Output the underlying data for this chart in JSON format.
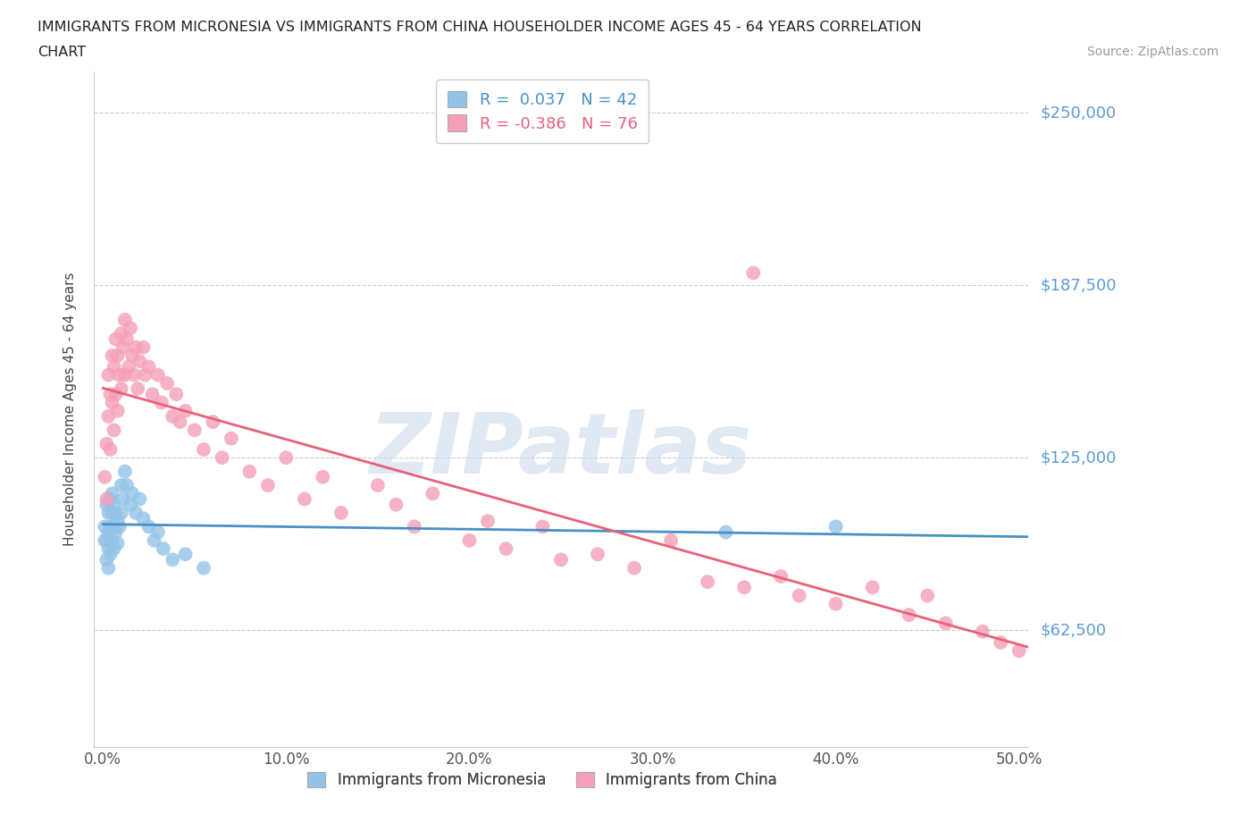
{
  "title_line1": "IMMIGRANTS FROM MICRONESIA VS IMMIGRANTS FROM CHINA HOUSEHOLDER INCOME AGES 45 - 64 YEARS CORRELATION",
  "title_line2": "CHART",
  "source_text": "Source: ZipAtlas.com",
  "ylabel": "Householder Income Ages 45 - 64 years",
  "xlim": [
    -0.005,
    0.505
  ],
  "ylim": [
    20000,
    265000
  ],
  "yticks": [
    62500,
    125000,
    187500,
    250000
  ],
  "ytick_labels": [
    "$62,500",
    "$125,000",
    "$187,500",
    "$250,000"
  ],
  "xticks": [
    0.0,
    0.1,
    0.2,
    0.3,
    0.4,
    0.5
  ],
  "xtick_labels": [
    "0.0%",
    "10.0%",
    "20.0%",
    "30.0%",
    "40.0%",
    "50.0%"
  ],
  "micronesia_color": "#93c4e8",
  "china_color": "#f4a0b8",
  "micronesia_trend_color": "#4a90c4",
  "china_trend_color": "#e8607a",
  "micronesia_R": 0.037,
  "micronesia_N": 42,
  "china_R": -0.386,
  "china_N": 76,
  "watermark": "ZIPatlas",
  "micronesia_x": [
    0.001,
    0.001,
    0.002,
    0.002,
    0.002,
    0.003,
    0.003,
    0.003,
    0.003,
    0.004,
    0.004,
    0.004,
    0.005,
    0.005,
    0.005,
    0.006,
    0.006,
    0.006,
    0.007,
    0.007,
    0.008,
    0.008,
    0.009,
    0.01,
    0.01,
    0.011,
    0.012,
    0.013,
    0.015,
    0.016,
    0.018,
    0.02,
    0.022,
    0.025,
    0.028,
    0.03,
    0.033,
    0.038,
    0.045,
    0.055,
    0.34,
    0.4
  ],
  "micronesia_y": [
    100000,
    95000,
    108000,
    95000,
    88000,
    105000,
    98000,
    92000,
    85000,
    110000,
    100000,
    90000,
    112000,
    105000,
    95000,
    108000,
    100000,
    92000,
    105000,
    98000,
    102000,
    94000,
    100000,
    115000,
    105000,
    110000,
    120000,
    115000,
    108000,
    112000,
    105000,
    110000,
    103000,
    100000,
    95000,
    98000,
    92000,
    88000,
    90000,
    85000,
    98000,
    100000
  ],
  "china_x": [
    0.001,
    0.002,
    0.002,
    0.003,
    0.003,
    0.004,
    0.004,
    0.005,
    0.005,
    0.006,
    0.006,
    0.007,
    0.007,
    0.008,
    0.008,
    0.009,
    0.01,
    0.01,
    0.011,
    0.012,
    0.012,
    0.013,
    0.014,
    0.015,
    0.016,
    0.017,
    0.018,
    0.019,
    0.02,
    0.022,
    0.023,
    0.025,
    0.027,
    0.03,
    0.032,
    0.035,
    0.038,
    0.04,
    0.042,
    0.045,
    0.05,
    0.055,
    0.06,
    0.065,
    0.07,
    0.08,
    0.09,
    0.1,
    0.11,
    0.12,
    0.13,
    0.15,
    0.16,
    0.17,
    0.18,
    0.2,
    0.21,
    0.22,
    0.24,
    0.25,
    0.27,
    0.29,
    0.31,
    0.33,
    0.35,
    0.355,
    0.37,
    0.38,
    0.4,
    0.42,
    0.44,
    0.45,
    0.46,
    0.48,
    0.49,
    0.5
  ],
  "china_y": [
    118000,
    130000,
    110000,
    155000,
    140000,
    148000,
    128000,
    162000,
    145000,
    158000,
    135000,
    168000,
    148000,
    162000,
    142000,
    155000,
    170000,
    150000,
    165000,
    175000,
    155000,
    168000,
    158000,
    172000,
    162000,
    155000,
    165000,
    150000,
    160000,
    165000,
    155000,
    158000,
    148000,
    155000,
    145000,
    152000,
    140000,
    148000,
    138000,
    142000,
    135000,
    128000,
    138000,
    125000,
    132000,
    120000,
    115000,
    125000,
    110000,
    118000,
    105000,
    115000,
    108000,
    100000,
    112000,
    95000,
    102000,
    92000,
    100000,
    88000,
    90000,
    85000,
    95000,
    80000,
    78000,
    192000,
    82000,
    75000,
    72000,
    78000,
    68000,
    75000,
    65000,
    62000,
    58000,
    55000
  ]
}
